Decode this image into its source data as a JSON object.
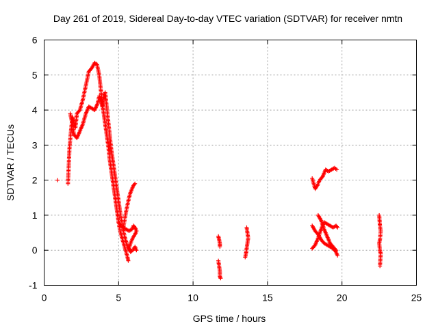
{
  "chart_data": {
    "type": "scatter",
    "title": "Day 261 of 2019, Sidereal Day-to-day VTEC variation (SDTVAR) for receiver nmtn",
    "xlabel": "GPS time / hours",
    "ylabel": "SDTVAR / TECUs",
    "xlim": [
      0,
      25
    ],
    "ylim": [
      -1,
      6
    ],
    "xticks": [
      "0",
      "5",
      "10",
      "15",
      "20",
      "25"
    ],
    "yticks": [
      "-1",
      "0",
      "1",
      "2",
      "3",
      "4",
      "5",
      "6"
    ],
    "grid": true,
    "marker": "plus",
    "color": "#ff0000",
    "series": [
      {
        "name": "nmtn",
        "segments": [
          [
            [
              0.9,
              2.0
            ]
          ],
          [
            [
              1.6,
              1.9
            ],
            [
              1.65,
              2.4
            ],
            [
              1.7,
              2.9
            ],
            [
              1.8,
              3.4
            ],
            [
              1.9,
              3.8
            ],
            [
              2.1,
              3.5
            ],
            [
              2.2,
              3.9
            ],
            [
              2.4,
              4.0
            ],
            [
              2.6,
              4.3
            ],
            [
              2.8,
              4.7
            ],
            [
              3.0,
              5.1
            ],
            [
              3.2,
              5.2
            ],
            [
              3.4,
              5.35
            ],
            [
              3.55,
              5.3
            ],
            [
              3.7,
              5.0
            ],
            [
              3.8,
              4.6
            ],
            [
              3.9,
              4.2
            ],
            [
              4.0,
              3.9
            ],
            [
              4.1,
              3.6
            ],
            [
              4.2,
              3.3
            ],
            [
              4.3,
              3.0
            ],
            [
              4.4,
              2.6
            ],
            [
              4.5,
              2.3
            ],
            [
              4.6,
              2.0
            ],
            [
              4.7,
              1.7
            ],
            [
              4.8,
              1.4
            ],
            [
              4.9,
              1.1
            ],
            [
              5.0,
              0.8
            ],
            [
              5.1,
              0.55
            ],
            [
              5.2,
              0.4
            ],
            [
              5.3,
              0.25
            ],
            [
              5.4,
              0.1
            ],
            [
              5.5,
              -0.05
            ],
            [
              5.6,
              -0.2
            ],
            [
              5.65,
              -0.3
            ]
          ],
          [
            [
              1.75,
              3.9
            ],
            [
              1.9,
              3.6
            ],
            [
              2.0,
              3.3
            ],
            [
              2.2,
              3.2
            ],
            [
              2.4,
              3.4
            ],
            [
              2.6,
              3.6
            ],
            [
              2.8,
              3.9
            ],
            [
              3.0,
              4.1
            ],
            [
              3.2,
              4.05
            ],
            [
              3.4,
              4.0
            ],
            [
              3.6,
              4.2
            ],
            [
              3.7,
              4.4
            ],
            [
              3.8,
              4.3
            ],
            [
              3.9,
              4.1
            ],
            [
              4.0,
              4.4
            ],
            [
              4.1,
              4.5
            ],
            [
              4.2,
              4.1
            ],
            [
              4.3,
              3.7
            ],
            [
              4.4,
              3.3
            ],
            [
              4.5,
              2.9
            ],
            [
              4.6,
              2.6
            ],
            [
              4.7,
              2.3
            ],
            [
              4.8,
              2.0
            ],
            [
              4.9,
              1.7
            ],
            [
              5.0,
              1.4
            ],
            [
              5.1,
              1.1
            ],
            [
              5.2,
              0.85
            ],
            [
              5.3,
              0.6
            ],
            [
              5.4,
              0.4
            ],
            [
              5.5,
              0.25
            ],
            [
              5.6,
              0.1
            ],
            [
              5.75,
              0.0
            ]
          ],
          [
            [
              5.0,
              0.8
            ],
            [
              5.15,
              0.7
            ],
            [
              5.3,
              0.65
            ],
            [
              5.5,
              0.6
            ],
            [
              5.7,
              0.55
            ],
            [
              5.9,
              0.6
            ],
            [
              6.0,
              0.7
            ],
            [
              6.1,
              0.65
            ],
            [
              6.2,
              0.55
            ],
            [
              6.1,
              0.45
            ],
            [
              5.95,
              0.35
            ],
            [
              5.8,
              0.2
            ],
            [
              5.7,
              0.05
            ],
            [
              5.8,
              -0.05
            ],
            [
              5.95,
              0.0
            ],
            [
              6.1,
              0.1
            ],
            [
              6.2,
              0.0
            ]
          ],
          [
            [
              5.3,
              0.6
            ],
            [
              5.4,
              0.85
            ],
            [
              5.5,
              1.1
            ],
            [
              5.6,
              1.3
            ],
            [
              5.7,
              1.5
            ],
            [
              5.8,
              1.65
            ],
            [
              5.9,
              1.75
            ],
            [
              6.0,
              1.85
            ],
            [
              6.1,
              1.9
            ]
          ],
          [
            [
              11.7,
              0.4
            ],
            [
              11.75,
              0.3
            ],
            [
              11.8,
              0.2
            ],
            [
              11.8,
              0.1
            ]
          ],
          [
            [
              11.7,
              -0.3
            ],
            [
              11.75,
              -0.45
            ],
            [
              11.8,
              -0.6
            ],
            [
              11.8,
              -0.75
            ],
            [
              11.85,
              -0.8
            ]
          ],
          [
            [
              13.6,
              0.65
            ],
            [
              13.65,
              0.5
            ],
            [
              13.7,
              0.35
            ],
            [
              13.65,
              0.2
            ],
            [
              13.6,
              0.05
            ],
            [
              13.55,
              -0.1
            ],
            [
              13.5,
              -0.2
            ]
          ],
          [
            [
              18.0,
              2.05
            ],
            [
              18.2,
              1.75
            ],
            [
              18.35,
              1.85
            ],
            [
              18.5,
              2.0
            ],
            [
              18.7,
              2.1
            ],
            [
              18.9,
              2.3
            ],
            [
              19.1,
              2.25
            ],
            [
              19.3,
              2.3
            ],
            [
              19.5,
              2.35
            ],
            [
              19.65,
              2.3
            ]
          ],
          [
            [
              18.0,
              0.7
            ],
            [
              18.2,
              0.55
            ],
            [
              18.4,
              0.45
            ],
            [
              18.6,
              0.3
            ],
            [
              18.8,
              0.2
            ],
            [
              19.0,
              0.15
            ],
            [
              19.2,
              0.1
            ],
            [
              19.4,
              0.05
            ],
            [
              19.6,
              -0.05
            ],
            [
              19.7,
              -0.15
            ]
          ],
          [
            [
              18.0,
              0.05
            ],
            [
              18.2,
              0.15
            ],
            [
              18.4,
              0.35
            ],
            [
              18.6,
              0.6
            ],
            [
              18.8,
              0.8
            ],
            [
              19.0,
              0.75
            ],
            [
              19.2,
              0.7
            ],
            [
              19.4,
              0.65
            ],
            [
              19.6,
              0.7
            ],
            [
              19.7,
              0.65
            ]
          ],
          [
            [
              18.4,
              1.0
            ],
            [
              18.6,
              0.85
            ],
            [
              18.8,
              0.6
            ],
            [
              19.0,
              0.4
            ],
            [
              19.2,
              0.2
            ],
            [
              19.4,
              0.1
            ],
            [
              19.6,
              0.0
            ]
          ],
          [
            [
              22.5,
              1.0
            ],
            [
              22.55,
              0.7
            ],
            [
              22.6,
              0.55
            ],
            [
              22.55,
              0.3
            ],
            [
              22.5,
              0.2
            ],
            [
              22.55,
              0.0
            ],
            [
              22.6,
              -0.1
            ],
            [
              22.55,
              -0.45
            ]
          ]
        ]
      }
    ]
  }
}
